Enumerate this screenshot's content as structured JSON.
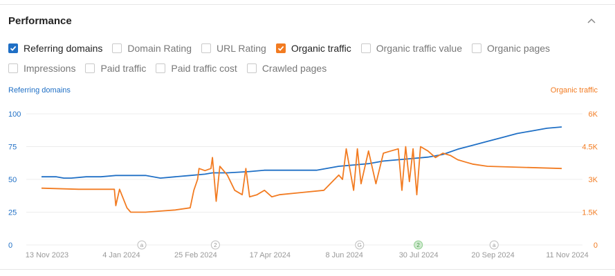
{
  "title": "Performance",
  "collapse_icon": "chevron-up-icon",
  "colors": {
    "blue": "#1f6fc5",
    "orange": "#f27b21",
    "grid": "#ececec",
    "axis_text": "#999999"
  },
  "checkbox_rows": [
    [
      {
        "label": "Referring domains",
        "checked": true,
        "color": "blue"
      },
      {
        "label": "Domain Rating",
        "checked": false
      },
      {
        "label": "URL Rating",
        "checked": false
      },
      {
        "label": "Organic traffic",
        "checked": true,
        "color": "orange"
      },
      {
        "label": "Organic traffic value",
        "checked": false
      },
      {
        "label": "Organic pages",
        "checked": false
      }
    ],
    [
      {
        "label": "Impressions",
        "checked": false
      },
      {
        "label": "Paid traffic",
        "checked": false
      },
      {
        "label": "Paid traffic cost",
        "checked": false
      },
      {
        "label": "Crawled pages",
        "checked": false
      }
    ]
  ],
  "chart_data": {
    "type": "line",
    "left_axis_title": "Referring domains",
    "right_axis_title": "Organic traffic",
    "left_ticks": [
      "0",
      "25",
      "50",
      "75",
      "100"
    ],
    "right_ticks": [
      "0",
      "1.5K",
      "3K",
      "4.5K",
      "6K"
    ],
    "ylim_left": [
      0,
      100
    ],
    "ylim_right": [
      0,
      6000
    ],
    "x_labels": [
      "13 Nov 2023",
      "4 Jan 2024",
      "25 Feb 2024",
      "17 Apr 2024",
      "8 Jun 2024",
      "30 Jul 2024",
      "20 Sep 2024",
      "11 Nov 2024"
    ],
    "annotations": [
      {
        "date_index": 1.35,
        "label": "a",
        "active": false
      },
      {
        "date_index": 2.34,
        "label": "2",
        "active": false
      },
      {
        "date_index": 4.28,
        "label": "G",
        "active": false
      },
      {
        "date_index": 5.07,
        "label": "2",
        "active": true
      },
      {
        "date_index": 6.09,
        "label": "a",
        "active": false
      }
    ],
    "grid": true,
    "series": [
      {
        "name": "Referring domains",
        "axis": "left",
        "color": "blue",
        "x": [
          0,
          0.2,
          0.3,
          0.4,
          0.6,
          0.8,
          1.0,
          1.4,
          1.6,
          1.8,
          2.0,
          2.2,
          2.3,
          2.5,
          2.8,
          3.0,
          3.4,
          3.7,
          4.0,
          4.2,
          4.4,
          4.6,
          4.8,
          5.0,
          5.2,
          5.4,
          5.6,
          5.8,
          6.0,
          6.2,
          6.4,
          6.6,
          6.8,
          7.0
        ],
        "values": [
          52,
          52,
          51,
          51,
          52,
          52,
          53,
          53,
          51,
          52,
          53,
          54,
          55,
          55,
          56,
          57,
          57,
          57,
          60,
          61,
          62,
          64,
          65,
          66,
          67,
          69,
          73,
          76,
          79,
          82,
          85,
          87,
          89,
          90
        ]
      },
      {
        "name": "Organic traffic",
        "axis": "right",
        "color": "orange",
        "x": [
          0,
          0.5,
          0.98,
          1.0,
          1.05,
          1.15,
          1.2,
          1.4,
          1.6,
          1.8,
          2.0,
          2.05,
          2.1,
          2.12,
          2.2,
          2.28,
          2.3,
          2.35,
          2.4,
          2.5,
          2.6,
          2.7,
          2.75,
          2.8,
          2.9,
          3.0,
          3.1,
          3.2,
          3.5,
          3.8,
          4.0,
          4.05,
          4.1,
          4.2,
          4.25,
          4.3,
          4.4,
          4.5,
          4.6,
          4.7,
          4.8,
          4.85,
          4.9,
          4.95,
          5.0,
          5.05,
          5.1,
          5.2,
          5.3,
          5.4,
          5.5,
          5.6,
          5.7,
          5.8,
          6.0,
          6.5,
          7.0
        ],
        "values": [
          2600,
          2550,
          2550,
          1800,
          2550,
          1700,
          1500,
          1500,
          1550,
          1600,
          1700,
          2500,
          3000,
          3500,
          3400,
          3500,
          4000,
          2000,
          3600,
          3200,
          2500,
          2300,
          3500,
          2200,
          2300,
          2500,
          2200,
          2300,
          2400,
          2500,
          3200,
          3000,
          4400,
          2500,
          4400,
          2800,
          4300,
          2800,
          4200,
          4300,
          4400,
          2500,
          4500,
          2900,
          4400,
          2300,
          4500,
          4300,
          4000,
          4200,
          4100,
          3900,
          3800,
          3700,
          3600,
          3550,
          3500
        ]
      }
    ]
  }
}
